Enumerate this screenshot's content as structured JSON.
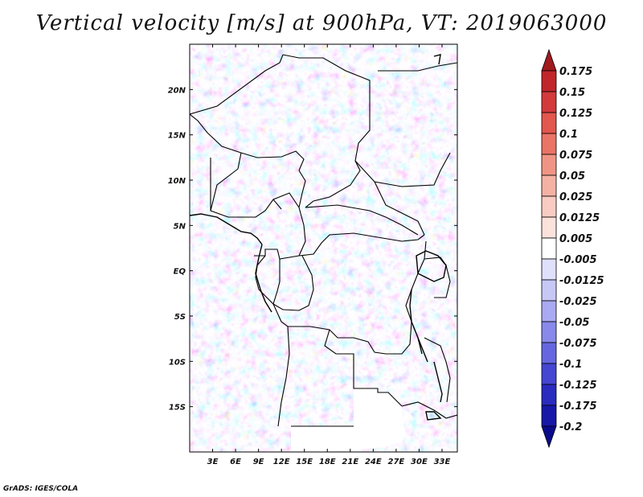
{
  "title": "Vertical velocity [m/s] at 900hPa, VT: 2019063000",
  "credit": "GrADS: IGES/COLA",
  "map": {
    "lon_range": [
      0,
      35
    ],
    "lat_range": [
      -20,
      25
    ],
    "lon_ticks": [
      "3E",
      "6E",
      "9E",
      "12E",
      "15E",
      "18E",
      "21E",
      "24E",
      "27E",
      "30E",
      "33E"
    ],
    "lat_ticks": [
      "20N",
      "15N",
      "10N",
      "5N",
      "EQ",
      "5S",
      "10S",
      "15S"
    ],
    "borders_color": "#000000"
  },
  "colorbar": {
    "levels": [
      "0.175",
      "0.15",
      "0.125",
      "0.1",
      "0.075",
      "0.05",
      "0.025",
      "0.0125",
      "0.005",
      "-0.005",
      "-0.0125",
      "-0.025",
      "-0.05",
      "-0.075",
      "-0.1",
      "-0.125",
      "-0.175",
      "-0.2"
    ],
    "colors": [
      "#a11a1d",
      "#c0262a",
      "#d33a3c",
      "#e2574e",
      "#ea7466",
      "#f09585",
      "#f4b2a5",
      "#f8ccc2",
      "#fbe3dc",
      "#ffffff",
      "#dfe0fb",
      "#c7c8f6",
      "#a9aaf1",
      "#8889ea",
      "#6667e0",
      "#4546d2",
      "#2a2bbf",
      "#1818a8",
      "#0a0a8c"
    ]
  }
}
